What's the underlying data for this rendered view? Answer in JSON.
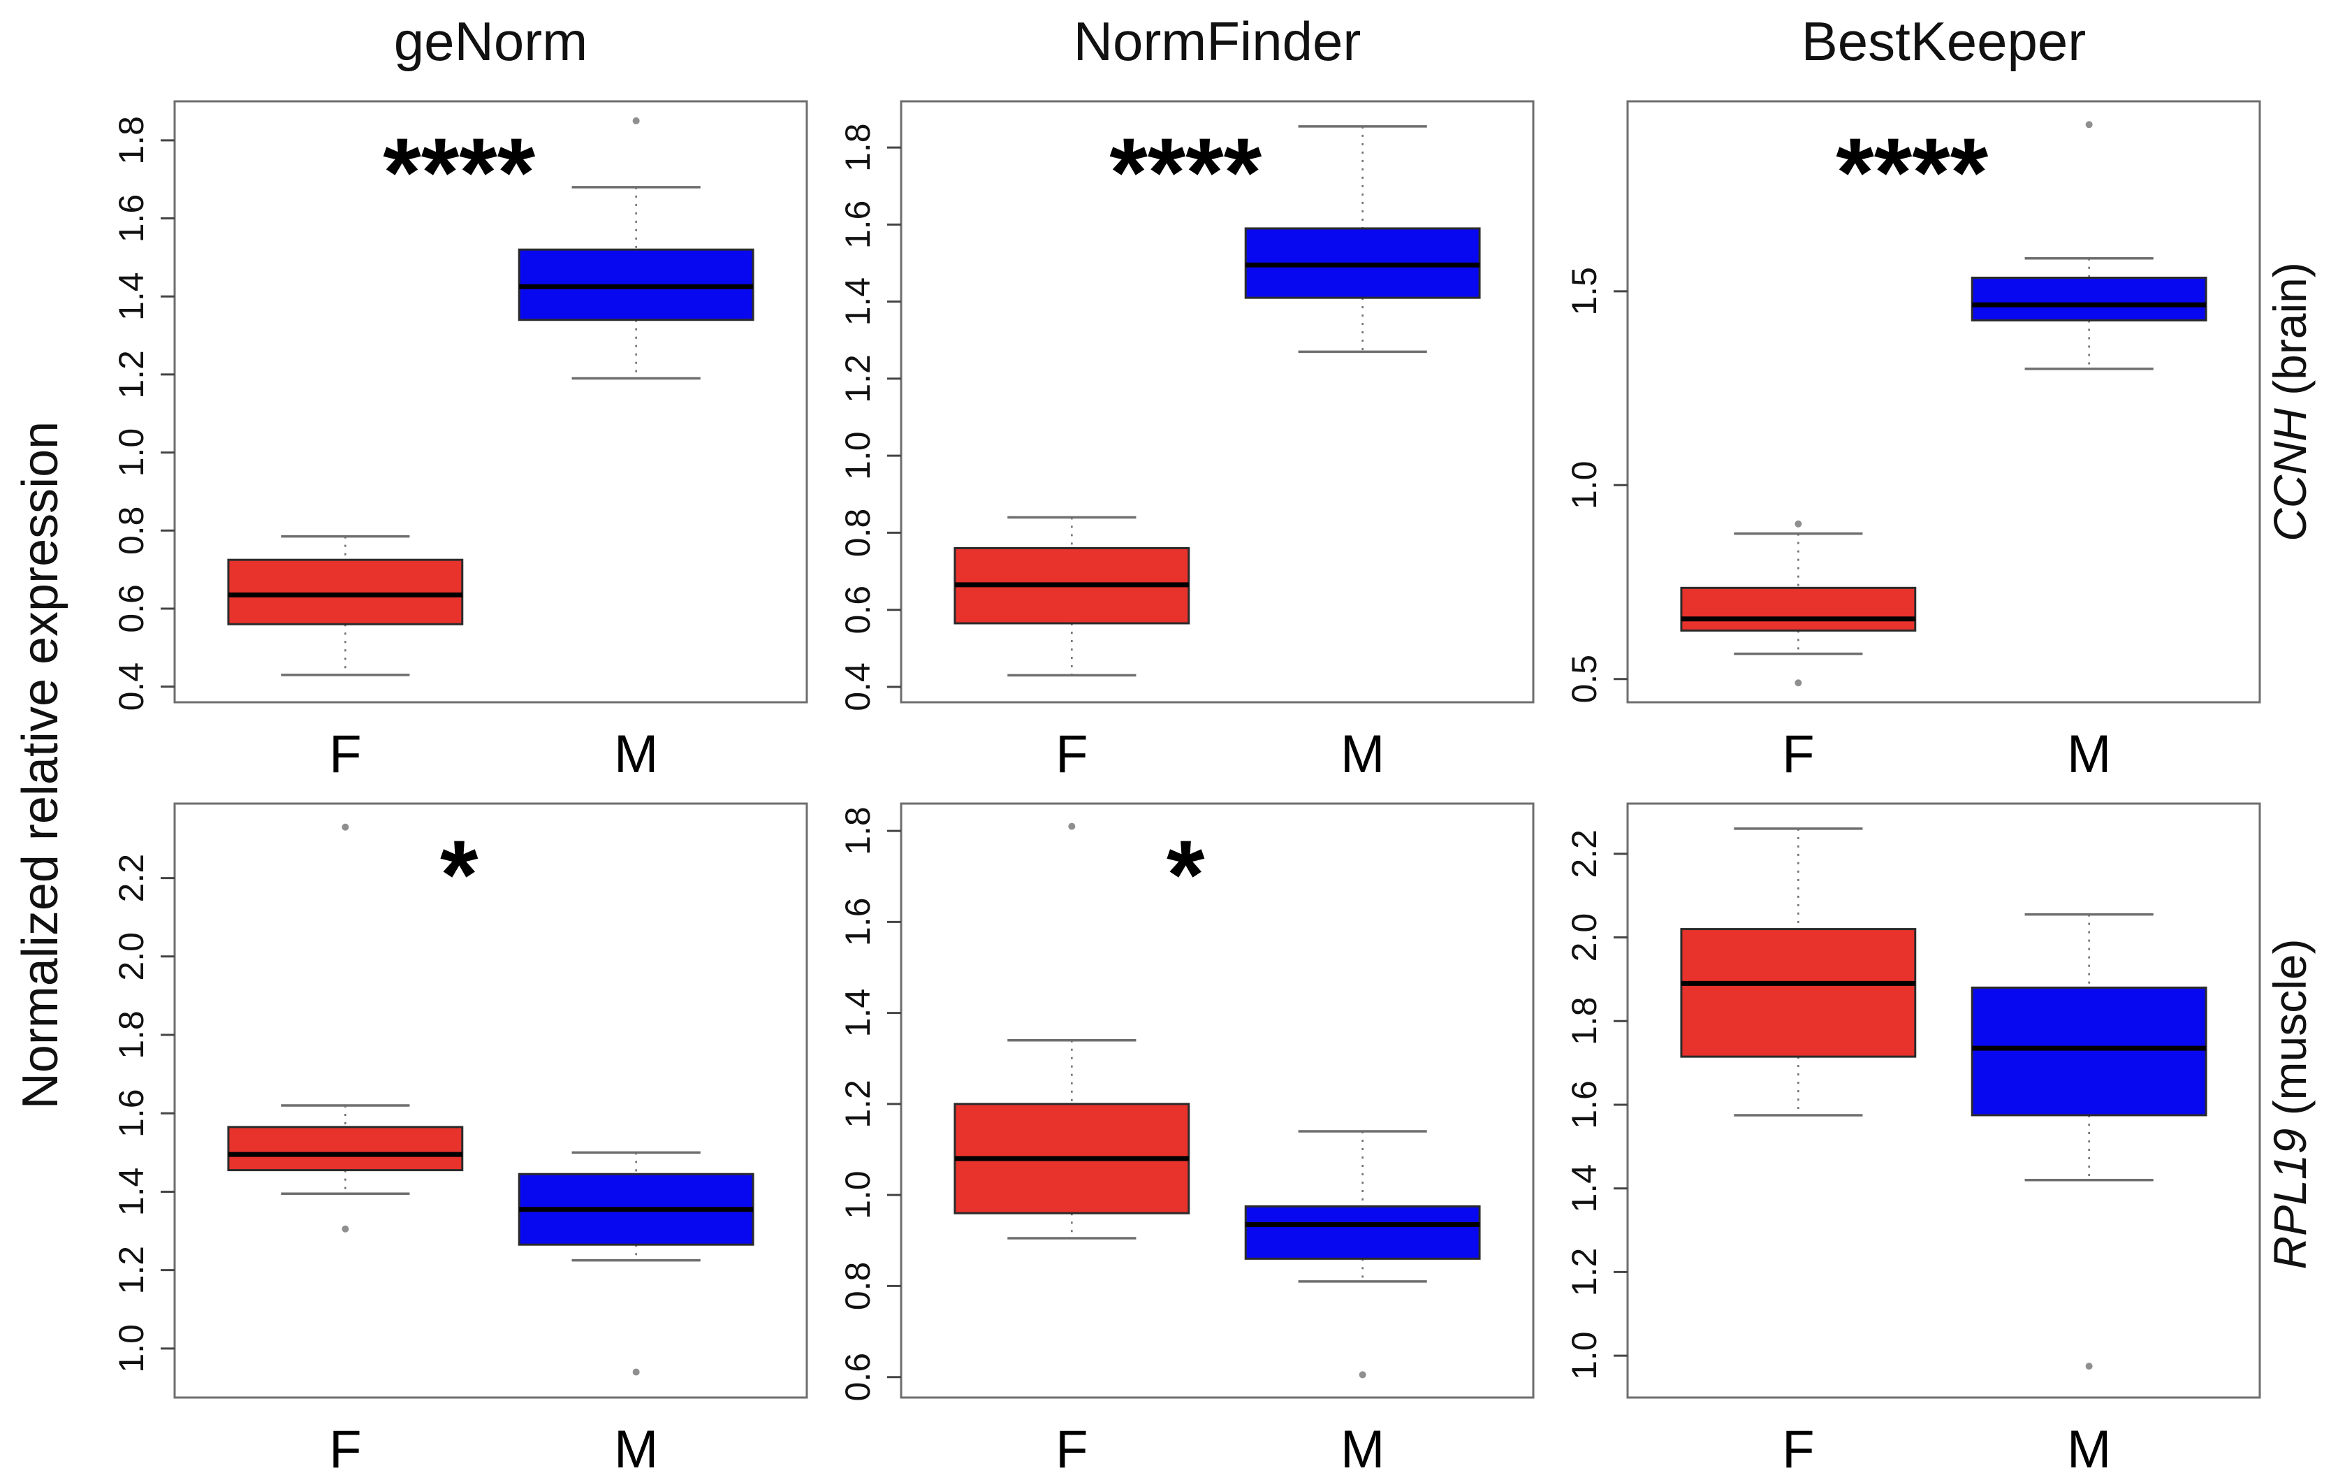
{
  "figure": {
    "ylabel": "Normalized relative expression",
    "columns": [
      "geNorm",
      "NormFinder",
      "BestKeeper"
    ],
    "row_labels": [
      {
        "gene": "CCNH",
        "tissue": " (brain)"
      },
      {
        "gene": "RPL19",
        "tissue": " (muscle)"
      }
    ],
    "x_categories": [
      "F",
      "M"
    ],
    "colors": {
      "female_box": "#E8322C",
      "male_box": "#0808F0",
      "median_line": "#000000",
      "box_border": "#2B2B2B",
      "whisker": "#6E6E6E",
      "panel_border": "#6E6E6E",
      "outlier": "#8F8F8F",
      "text": "#111111",
      "background": "#FFFFFF"
    }
  },
  "chart_data": [
    {
      "type": "boxplot",
      "column": "geNorm",
      "row": "CCNH (brain)",
      "significance": "****",
      "ylim": [
        0.36,
        1.9
      ],
      "yticks": [
        0.4,
        0.6,
        0.8,
        1.0,
        1.2,
        1.4,
        1.6,
        1.8
      ],
      "groups": [
        {
          "label": "F",
          "color_key": "female_box",
          "whisker_low": 0.43,
          "q1": 0.56,
          "median": 0.635,
          "q3": 0.725,
          "whisker_high": 0.785,
          "outliers": []
        },
        {
          "label": "M",
          "color_key": "male_box",
          "whisker_low": 1.19,
          "q1": 1.34,
          "median": 1.425,
          "q3": 1.52,
          "whisker_high": 1.68,
          "outliers": [
            1.85
          ]
        }
      ]
    },
    {
      "type": "boxplot",
      "column": "NormFinder",
      "row": "CCNH (brain)",
      "significance": "****",
      "ylim": [
        0.36,
        1.92
      ],
      "yticks": [
        0.4,
        0.6,
        0.8,
        1.0,
        1.2,
        1.4,
        1.6,
        1.8
      ],
      "groups": [
        {
          "label": "F",
          "color_key": "female_box",
          "whisker_low": 0.43,
          "q1": 0.565,
          "median": 0.665,
          "q3": 0.76,
          "whisker_high": 0.84,
          "outliers": []
        },
        {
          "label": "M",
          "color_key": "male_box",
          "whisker_low": 1.27,
          "q1": 1.41,
          "median": 1.495,
          "q3": 1.59,
          "whisker_high": 1.855,
          "outliers": []
        }
      ]
    },
    {
      "type": "boxplot",
      "column": "BestKeeper",
      "row": "CCNH (brain)",
      "significance": "****",
      "ylim": [
        0.44,
        1.99
      ],
      "yticks": [
        0.5,
        1.0,
        1.5
      ],
      "groups": [
        {
          "label": "F",
          "color_key": "female_box",
          "whisker_low": 0.565,
          "q1": 0.625,
          "median": 0.655,
          "q3": 0.735,
          "whisker_high": 0.875,
          "outliers": [
            0.49,
            0.9
          ]
        },
        {
          "label": "M",
          "color_key": "male_box",
          "whisker_low": 1.3,
          "q1": 1.425,
          "median": 1.465,
          "q3": 1.535,
          "whisker_high": 1.585,
          "outliers": [
            1.93
          ]
        }
      ]
    },
    {
      "type": "boxplot",
      "column": "geNorm",
      "row": "RPL19 (muscle)",
      "significance": "*",
      "ylim": [
        0.875,
        2.39
      ],
      "yticks": [
        1.0,
        1.2,
        1.4,
        1.6,
        1.8,
        2.0,
        2.2
      ],
      "groups": [
        {
          "label": "F",
          "color_key": "female_box",
          "whisker_low": 1.395,
          "q1": 1.455,
          "median": 1.495,
          "q3": 1.565,
          "whisker_high": 1.62,
          "outliers": [
            1.305,
            2.33
          ]
        },
        {
          "label": "M",
          "color_key": "male_box",
          "whisker_low": 1.225,
          "q1": 1.265,
          "median": 1.355,
          "q3": 1.445,
          "whisker_high": 1.5,
          "outliers": [
            0.94
          ]
        }
      ]
    },
    {
      "type": "boxplot",
      "column": "NormFinder",
      "row": "RPL19 (muscle)",
      "significance": "*",
      "ylim": [
        0.555,
        1.86
      ],
      "yticks": [
        0.6,
        0.8,
        1.0,
        1.2,
        1.4,
        1.6,
        1.8
      ],
      "groups": [
        {
          "label": "F",
          "color_key": "female_box",
          "whisker_low": 0.905,
          "q1": 0.96,
          "median": 1.08,
          "q3": 1.2,
          "whisker_high": 1.34,
          "outliers": [
            1.81
          ]
        },
        {
          "label": "M",
          "color_key": "male_box",
          "whisker_low": 0.81,
          "q1": 0.86,
          "median": 0.935,
          "q3": 0.975,
          "whisker_high": 1.14,
          "outliers": [
            0.605
          ]
        }
      ]
    },
    {
      "type": "boxplot",
      "column": "BestKeeper",
      "row": "RPL19 (muscle)",
      "significance": "",
      "ylim": [
        0.9,
        2.32
      ],
      "yticks": [
        1.0,
        1.2,
        1.4,
        1.6,
        1.8,
        2.0,
        2.2
      ],
      "groups": [
        {
          "label": "F",
          "color_key": "female_box",
          "whisker_low": 1.575,
          "q1": 1.715,
          "median": 1.89,
          "q3": 2.02,
          "whisker_high": 2.26,
          "outliers": []
        },
        {
          "label": "M",
          "color_key": "male_box",
          "whisker_low": 1.42,
          "q1": 1.575,
          "median": 1.735,
          "q3": 1.88,
          "whisker_high": 2.055,
          "outliers": [
            0.975
          ]
        }
      ]
    }
  ]
}
